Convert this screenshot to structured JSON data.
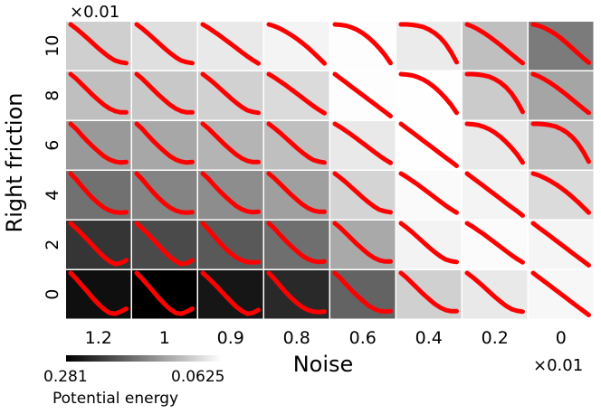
{
  "chart_data": {
    "type": "heatmap",
    "title": "",
    "xlabel": "Noise",
    "ylabel": "Right  friction",
    "x_scale_label": "×0.01",
    "y_scale_label": "×0.01",
    "x_categories": [
      "1.2",
      "1",
      "0.9",
      "0.8",
      "0.6",
      "0.4",
      "0.2",
      "0"
    ],
    "y_categories": [
      "10",
      "8",
      "6",
      "4",
      "2",
      "0"
    ],
    "colorbar": {
      "label": "Potential energy",
      "min_label": "0.281",
      "max_label": "0.0625",
      "min": 0.0625,
      "max": 0.281,
      "colormap": "grays (dark = high, light = low)"
    },
    "values": [
      [
        0.104,
        0.09,
        0.081,
        0.072,
        0.064,
        0.08,
        0.117,
        0.176
      ],
      [
        0.117,
        0.11,
        0.102,
        0.093,
        0.064,
        0.063,
        0.107,
        0.14
      ],
      [
        0.15,
        0.138,
        0.127,
        0.117,
        0.081,
        0.063,
        0.081,
        0.117
      ],
      [
        0.184,
        0.168,
        0.16,
        0.145,
        0.099,
        0.067,
        0.072,
        0.093
      ],
      [
        0.236,
        0.218,
        0.205,
        0.186,
        0.136,
        0.073,
        0.066,
        0.071
      ],
      [
        0.268,
        0.281,
        0.262,
        0.246,
        0.196,
        0.103,
        0.081,
        0.069
      ]
    ],
    "line_color": "#ff0000",
    "inset_curves": [
      [
        [
          0.0,
          0.0
        ],
        [
          0.1,
          0.14
        ],
        [
          0.2,
          0.3
        ],
        [
          0.3,
          0.45
        ],
        [
          0.4,
          0.59
        ],
        [
          0.5,
          0.71
        ],
        [
          0.6,
          0.81
        ],
        [
          0.7,
          0.88
        ],
        [
          0.8,
          0.92
        ],
        [
          0.9,
          0.93
        ],
        [
          1.0,
          0.92
        ]
      ],
      [
        [
          0.0,
          0.0
        ],
        [
          0.1,
          0.12
        ],
        [
          0.2,
          0.27
        ],
        [
          0.3,
          0.41
        ],
        [
          0.4,
          0.54
        ],
        [
          0.5,
          0.66
        ],
        [
          0.6,
          0.77
        ],
        [
          0.7,
          0.85
        ],
        [
          0.8,
          0.9
        ],
        [
          0.9,
          0.92
        ],
        [
          1.0,
          0.91
        ]
      ],
      [
        [
          0.0,
          0.0
        ],
        [
          0.1,
          0.11
        ],
        [
          0.2,
          0.24
        ],
        [
          0.3,
          0.37
        ],
        [
          0.4,
          0.5
        ],
        [
          0.5,
          0.62
        ],
        [
          0.6,
          0.73
        ],
        [
          0.7,
          0.82
        ],
        [
          0.8,
          0.88
        ],
        [
          0.9,
          0.91
        ],
        [
          1.0,
          0.91
        ]
      ],
      [
        [
          0.0,
          0.0
        ],
        [
          0.1,
          0.1
        ],
        [
          0.2,
          0.21
        ],
        [
          0.3,
          0.33
        ],
        [
          0.4,
          0.45
        ],
        [
          0.5,
          0.57
        ],
        [
          0.6,
          0.68
        ],
        [
          0.7,
          0.78
        ],
        [
          0.8,
          0.86
        ],
        [
          0.9,
          0.9
        ],
        [
          1.0,
          0.92
        ]
      ],
      [
        [
          0.0,
          0.0
        ],
        [
          0.1,
          0.08
        ],
        [
          0.2,
          0.17
        ],
        [
          0.3,
          0.26
        ],
        [
          0.4,
          0.36
        ],
        [
          0.5,
          0.46
        ],
        [
          0.6,
          0.56
        ],
        [
          0.7,
          0.66
        ],
        [
          0.8,
          0.76
        ],
        [
          0.9,
          0.85
        ],
        [
          1.0,
          0.93
        ]
      ],
      [
        [
          0.0,
          0.0
        ],
        [
          0.1,
          0.04
        ],
        [
          0.2,
          0.1
        ],
        [
          0.3,
          0.17
        ],
        [
          0.4,
          0.25
        ],
        [
          0.5,
          0.34
        ],
        [
          0.6,
          0.44
        ],
        [
          0.7,
          0.55
        ],
        [
          0.8,
          0.67
        ],
        [
          0.9,
          0.8
        ],
        [
          1.0,
          0.93
        ]
      ],
      [
        [
          0.0,
          0.0
        ],
        [
          0.1,
          0.01
        ],
        [
          0.2,
          0.03
        ],
        [
          0.3,
          0.07
        ],
        [
          0.4,
          0.13
        ],
        [
          0.5,
          0.21
        ],
        [
          0.6,
          0.31
        ],
        [
          0.7,
          0.43
        ],
        [
          0.8,
          0.57
        ],
        [
          0.9,
          0.73
        ],
        [
          1.0,
          0.92
        ]
      ],
      [
        [
          0.0,
          0.0
        ],
        [
          0.1,
          0.0
        ],
        [
          0.2,
          0.01
        ],
        [
          0.3,
          0.03
        ],
        [
          0.4,
          0.06
        ],
        [
          0.5,
          0.12
        ],
        [
          0.6,
          0.2
        ],
        [
          0.7,
          0.31
        ],
        [
          0.8,
          0.46
        ],
        [
          0.9,
          0.66
        ],
        [
          1.0,
          0.9
        ]
      ],
      [
        [
          0.0,
          0.0
        ],
        [
          0.1,
          0.05
        ],
        [
          0.2,
          0.12
        ],
        [
          0.3,
          0.2
        ],
        [
          0.4,
          0.29
        ],
        [
          0.5,
          0.39
        ],
        [
          0.6,
          0.49
        ],
        [
          0.7,
          0.6
        ],
        [
          0.8,
          0.71
        ],
        [
          0.9,
          0.82
        ],
        [
          1.0,
          0.92
        ]
      ],
      [
        [
          0.0,
          0.0
        ],
        [
          0.1,
          0.03
        ],
        [
          0.2,
          0.08
        ],
        [
          0.3,
          0.15
        ],
        [
          0.4,
          0.23
        ],
        [
          0.5,
          0.33
        ],
        [
          0.6,
          0.44
        ],
        [
          0.7,
          0.56
        ],
        [
          0.8,
          0.68
        ],
        [
          0.9,
          0.8
        ],
        [
          1.0,
          0.91
        ]
      ],
      [
        [
          0.0,
          0.0
        ],
        [
          0.1,
          0.1
        ],
        [
          0.2,
          0.2
        ],
        [
          0.3,
          0.3
        ],
        [
          0.4,
          0.4
        ],
        [
          0.5,
          0.5
        ],
        [
          0.6,
          0.6
        ],
        [
          0.7,
          0.7
        ],
        [
          0.8,
          0.8
        ],
        [
          0.9,
          0.9
        ],
        [
          1.0,
          1.0
        ]
      ],
      [
        [
          0.0,
          0.0
        ],
        [
          0.1,
          0.12
        ],
        [
          0.2,
          0.25
        ],
        [
          0.3,
          0.39
        ],
        [
          0.4,
          0.53
        ],
        [
          0.5,
          0.67
        ],
        [
          0.6,
          0.8
        ],
        [
          0.7,
          0.9
        ],
        [
          0.8,
          0.97
        ],
        [
          0.9,
          0.95
        ],
        [
          1.0,
          0.88
        ]
      ],
      [
        [
          0.0,
          0.0
        ],
        [
          0.1,
          0.14
        ],
        [
          0.2,
          0.29
        ],
        [
          0.3,
          0.44
        ],
        [
          0.4,
          0.6
        ],
        [
          0.5,
          0.74
        ],
        [
          0.6,
          0.86
        ],
        [
          0.7,
          0.95
        ],
        [
          0.8,
          0.97
        ],
        [
          0.9,
          0.92
        ],
        [
          1.0,
          0.85
        ]
      ]
    ],
    "inset_curve_index": [
      [
        3,
        3,
        4,
        5,
        6,
        7,
        8,
        9
      ],
      [
        2,
        2,
        3,
        4,
        10,
        6,
        7,
        8
      ],
      [
        1,
        1,
        2,
        3,
        4,
        10,
        6,
        7
      ],
      [
        0,
        0,
        1,
        2,
        3,
        4,
        10,
        5
      ],
      [
        11,
        11,
        0,
        1,
        2,
        3,
        4,
        10
      ],
      [
        12,
        12,
        11,
        0,
        1,
        2,
        3,
        10
      ]
    ]
  }
}
